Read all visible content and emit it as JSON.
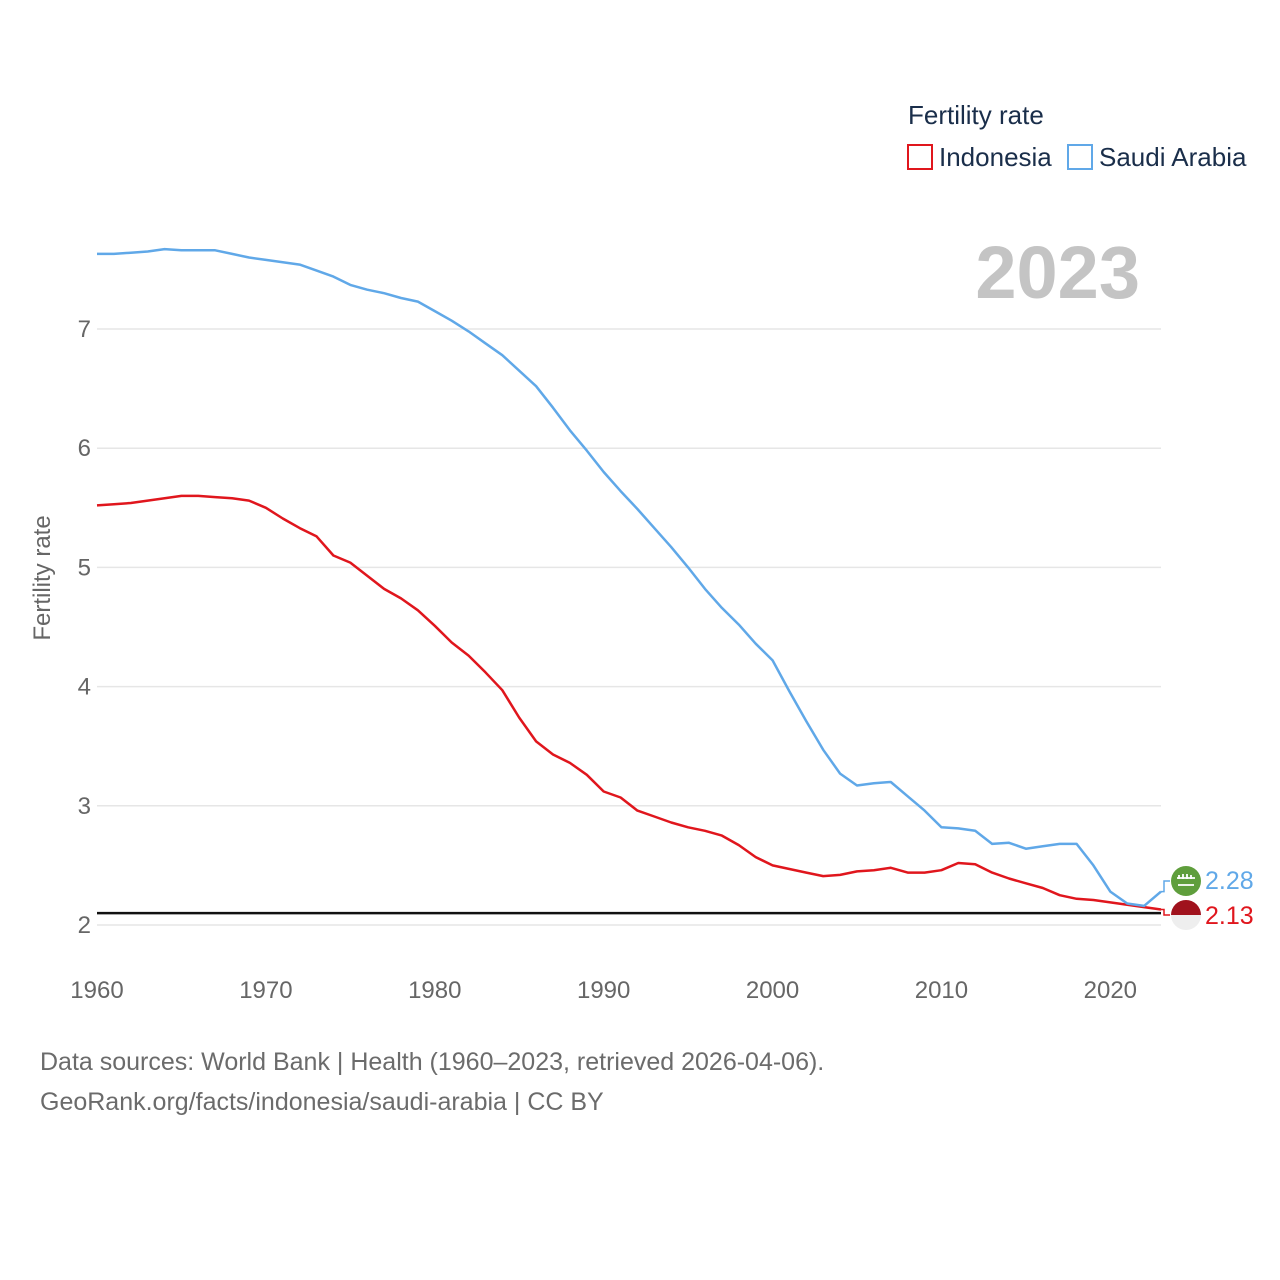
{
  "chart_data": {
    "type": "line",
    "year_label": "2023",
    "ylabel": "Fertility rate",
    "xlim": [
      1960,
      2023
    ],
    "ylim": [
      1.9,
      7.95
    ],
    "x_ticks": [
      1960,
      1970,
      1980,
      1990,
      2000,
      2010,
      2020
    ],
    "y_ticks": [
      2,
      3,
      4,
      5,
      6,
      7
    ],
    "reference_line": 2.1,
    "legend": {
      "title": "Fertility rate",
      "position": "top-right"
    },
    "series": [
      {
        "name": "Indonesia",
        "color": "#e0161d",
        "end_label": "2.13",
        "x": [
          1960,
          1961,
          1962,
          1963,
          1964,
          1965,
          1966,
          1967,
          1968,
          1969,
          1970,
          1971,
          1972,
          1973,
          1974,
          1975,
          1976,
          1977,
          1978,
          1979,
          1980,
          1981,
          1982,
          1983,
          1984,
          1985,
          1986,
          1987,
          1988,
          1989,
          1990,
          1991,
          1992,
          1993,
          1994,
          1995,
          1996,
          1997,
          1998,
          1999,
          2000,
          2001,
          2002,
          2003,
          2004,
          2005,
          2006,
          2007,
          2008,
          2009,
          2010,
          2011,
          2012,
          2013,
          2014,
          2015,
          2016,
          2017,
          2018,
          2019,
          2020,
          2021,
          2022,
          2023
        ],
        "values": [
          5.52,
          5.53,
          5.54,
          5.56,
          5.58,
          5.6,
          5.6,
          5.59,
          5.58,
          5.56,
          5.5,
          5.41,
          5.33,
          5.26,
          5.1,
          5.04,
          4.93,
          4.82,
          4.74,
          4.64,
          4.51,
          4.37,
          4.26,
          4.12,
          3.97,
          3.74,
          3.54,
          3.43,
          3.36,
          3.26,
          3.12,
          3.07,
          2.96,
          2.91,
          2.86,
          2.82,
          2.79,
          2.75,
          2.67,
          2.57,
          2.5,
          2.47,
          2.44,
          2.41,
          2.42,
          2.45,
          2.46,
          2.48,
          2.44,
          2.44,
          2.46,
          2.52,
          2.51,
          2.44,
          2.39,
          2.35,
          2.31,
          2.25,
          2.22,
          2.21,
          2.19,
          2.17,
          2.15,
          2.13
        ]
      },
      {
        "name": "Saudi Arabia",
        "color": "#60a8e8",
        "end_label": "2.28",
        "x": [
          1960,
          1961,
          1962,
          1963,
          1964,
          1965,
          1966,
          1967,
          1968,
          1969,
          1970,
          1971,
          1972,
          1973,
          1974,
          1975,
          1976,
          1977,
          1978,
          1979,
          1980,
          1981,
          1982,
          1983,
          1984,
          1985,
          1986,
          1987,
          1988,
          1989,
          1990,
          1991,
          1992,
          1993,
          1994,
          1995,
          1996,
          1997,
          1998,
          1999,
          2000,
          2001,
          2002,
          2003,
          2004,
          2005,
          2006,
          2007,
          2008,
          2009,
          2010,
          2011,
          2012,
          2013,
          2014,
          2015,
          2016,
          2017,
          2018,
          2019,
          2020,
          2021,
          2022,
          2023
        ],
        "values": [
          7.63,
          7.63,
          7.64,
          7.65,
          7.67,
          7.66,
          7.66,
          7.66,
          7.63,
          7.6,
          7.58,
          7.56,
          7.54,
          7.49,
          7.44,
          7.37,
          7.33,
          7.3,
          7.26,
          7.23,
          7.15,
          7.07,
          6.98,
          6.88,
          6.78,
          6.65,
          6.52,
          6.34,
          6.15,
          5.98,
          5.8,
          5.64,
          5.49,
          5.33,
          5.17,
          5.0,
          4.82,
          4.66,
          4.52,
          4.36,
          4.22,
          3.96,
          3.71,
          3.47,
          3.27,
          3.17,
          3.19,
          3.2,
          3.08,
          2.96,
          2.82,
          2.81,
          2.79,
          2.68,
          2.69,
          2.64,
          2.66,
          2.68,
          2.68,
          2.5,
          2.28,
          2.18,
          2.16,
          2.28
        ]
      }
    ]
  },
  "footer": {
    "line1": "Data sources: World Bank | Health (1960–2023, retrieved 2026-04-06).",
    "line2": "GeoRank.org/facts/indonesia/saudi-arabia | CC BY"
  }
}
